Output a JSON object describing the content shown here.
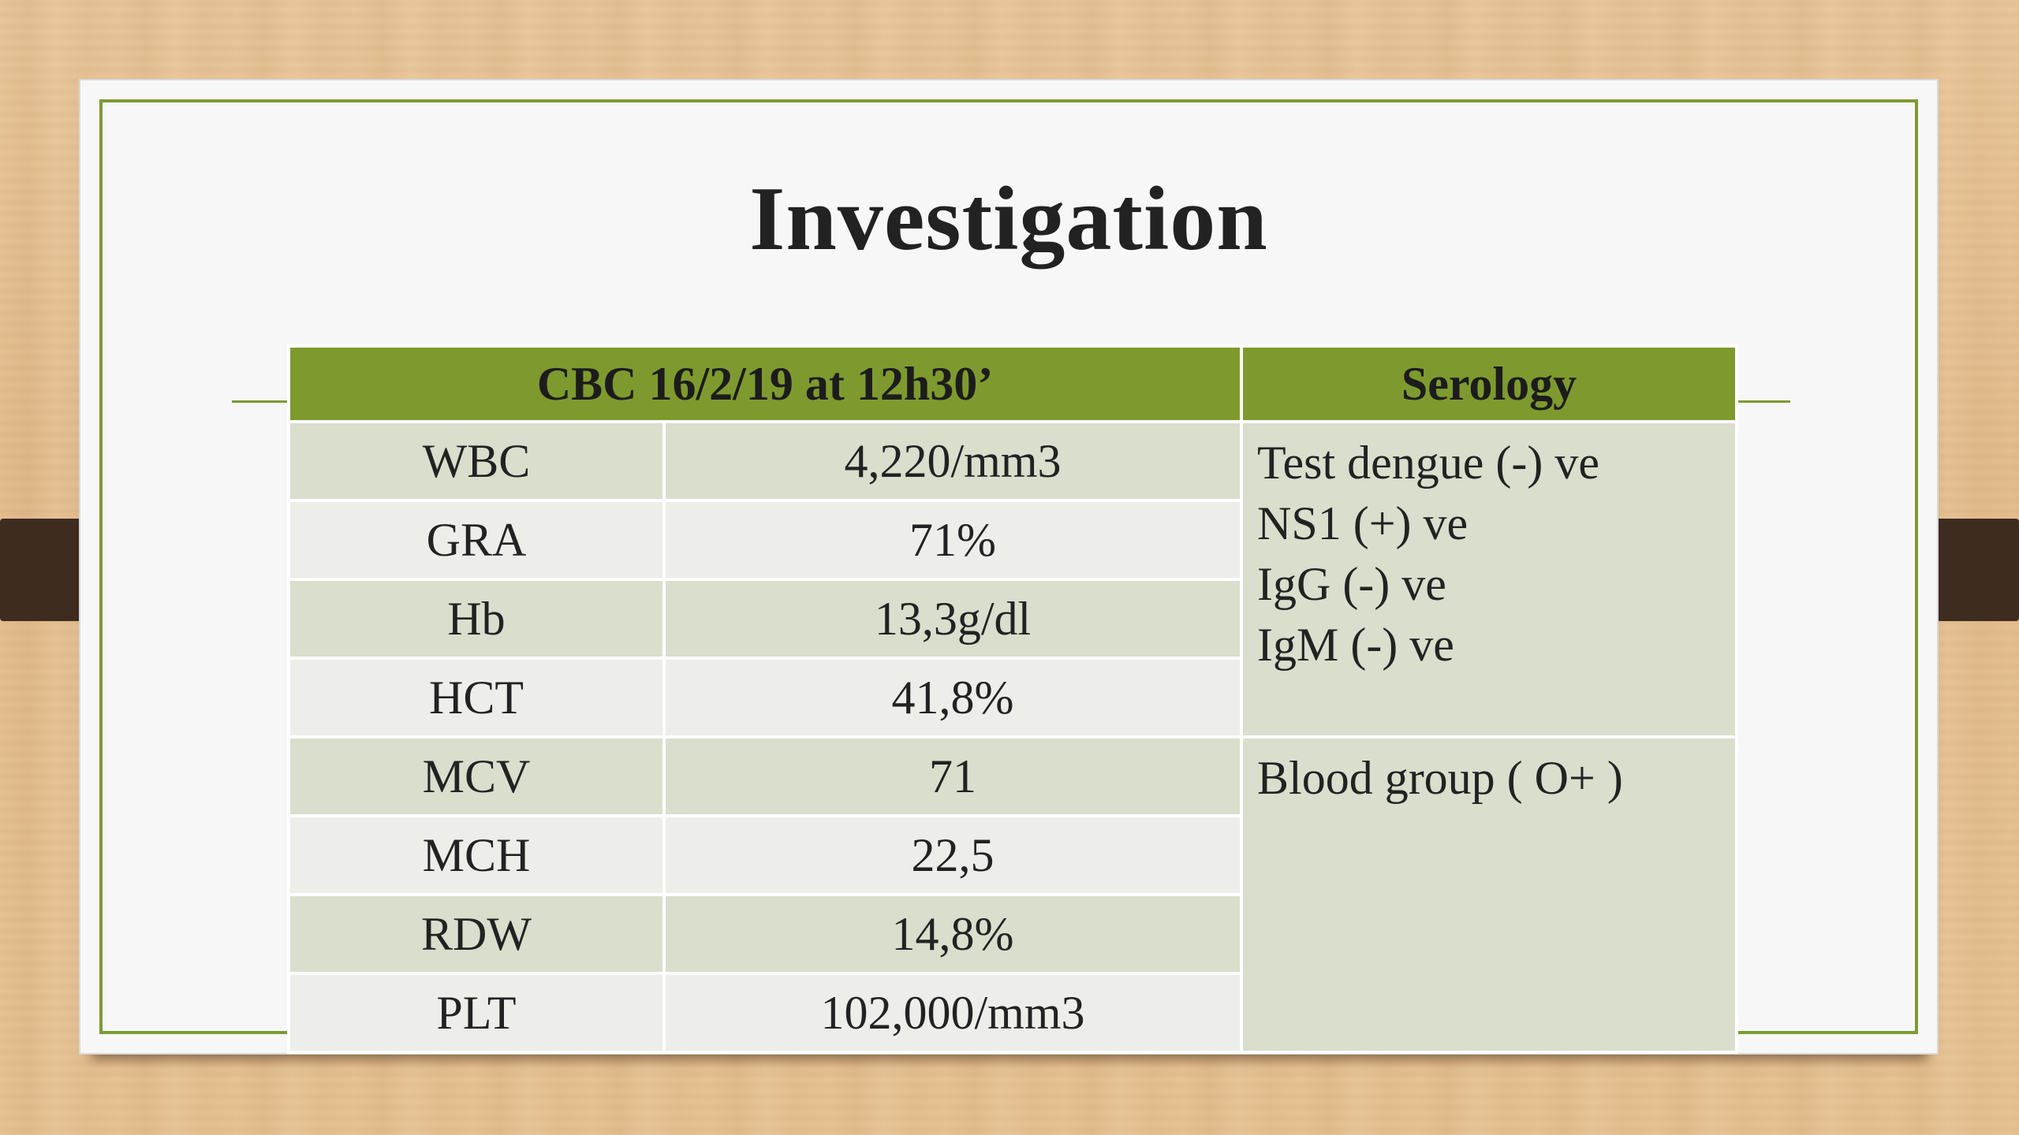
{
  "slide": {
    "title": "Investigation"
  },
  "table": {
    "header": {
      "cbc": "CBC 16/2/19 at 12h30’",
      "serology": "Serology"
    },
    "cbc_rows": [
      {
        "label": "WBC",
        "value": "4,220/mm3"
      },
      {
        "label": "GRA",
        "value": "71%"
      },
      {
        "label": "Hb",
        "value": "13,3g/dl"
      },
      {
        "label": "HCT",
        "value": "41,8%"
      },
      {
        "label": "MCV",
        "value": "71"
      },
      {
        "label": "MCH",
        "value": "22,5"
      },
      {
        "label": "RDW",
        "value": "14,8%"
      },
      {
        "label": "PLT",
        "value": "102,000/mm3"
      }
    ],
    "serology_block1": [
      "Test dengue (-) ve",
      "NS1 (+) ve",
      "IgG (-) ve",
      "IgM (-) ve"
    ],
    "serology_block2": [
      "Blood group ( O+ )"
    ]
  },
  "colors": {
    "accent_green": "#7e9a2e",
    "row_dark": "#d9decd",
    "row_light": "#ededea",
    "title_text": "#222222"
  }
}
